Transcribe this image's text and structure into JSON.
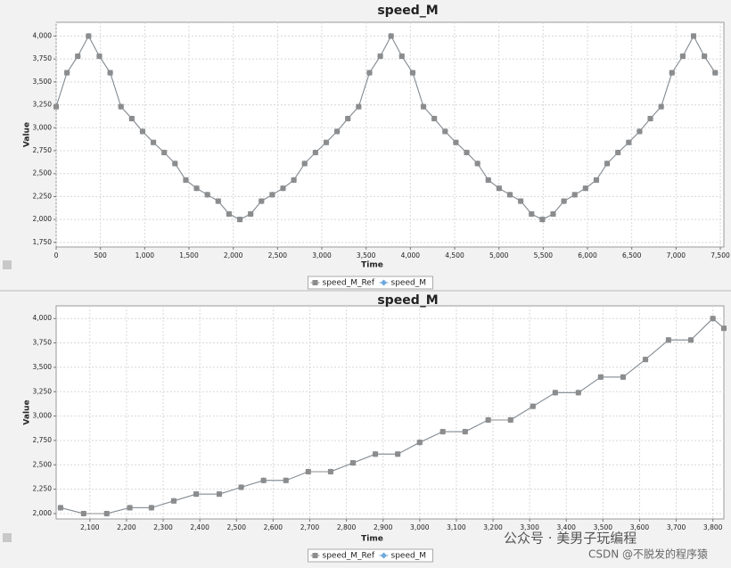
{
  "chart_data": [
    {
      "type": "line",
      "title": "speed_M",
      "x_label": "Time",
      "y_label": "Value",
      "grid": true,
      "legend": "bottom",
      "x": [
        0,
        122,
        244,
        366,
        488,
        610,
        732,
        854,
        976,
        1098,
        1220,
        1342,
        1464,
        1586,
        1708,
        1830,
        1952,
        2074,
        2196,
        2318,
        2440,
        2562,
        2684,
        2806,
        2928,
        3050,
        3172,
        3294,
        3416,
        3538,
        3660,
        3782,
        3904,
        4026,
        4148,
        4270,
        4392,
        4514,
        4636,
        4758,
        4880,
        5002,
        5124,
        5246,
        5368,
        5490,
        5612,
        5734,
        5856,
        5978,
        6100,
        6222,
        6344,
        6466,
        6588,
        6710,
        6832,
        6954,
        7076,
        7198,
        7320,
        7442
      ],
      "series": [
        {
          "name": "speed_M_Ref",
          "color": "#8c8c8c",
          "marker": "square",
          "values": [
            3230,
            3600,
            3780,
            4000,
            3780,
            3600,
            3230,
            3100,
            2960,
            2840,
            2730,
            2610,
            2430,
            2340,
            2270,
            2200,
            2060,
            2000,
            2060,
            2200,
            2270,
            2340,
            2430,
            2610,
            2730,
            2840,
            2960,
            3100,
            3230,
            3600,
            3780,
            4000,
            3780,
            3600,
            3230,
            3100,
            2960,
            2840,
            2730,
            2610,
            2430,
            2340,
            2270,
            2200,
            2060,
            2000,
            2060,
            2200,
            2270,
            2340,
            2430,
            2610,
            2730,
            2840,
            2960,
            3100,
            3230,
            3600,
            3780,
            4000,
            3780,
            3600
          ]
        },
        {
          "name": "speed_M",
          "color": "#6fa8dc",
          "marker": "diamond",
          "values": [
            3230,
            3600,
            3780,
            4000,
            3780,
            3600,
            3230,
            3100,
            2960,
            2840,
            2730,
            2610,
            2430,
            2340,
            2270,
            2200,
            2060,
            2000,
            2060,
            2200,
            2270,
            2340,
            2430,
            2610,
            2730,
            2840,
            2960,
            3100,
            3230,
            3600,
            3780,
            4000,
            3780,
            3600,
            3230,
            3100,
            2960,
            2840,
            2730,
            2610,
            2430,
            2340,
            2270,
            2200,
            2060,
            2000,
            2060,
            2200,
            2270,
            2340,
            2430,
            2610,
            2730,
            2840,
            2960,
            3100,
            3230,
            3600,
            3780,
            4000,
            3780,
            3600
          ]
        }
      ],
      "xlim": [
        0,
        7540
      ],
      "ylim": [
        1700,
        4150
      ],
      "xticks": [
        0,
        500,
        {
          "value": 1000,
          "label": "1,000"
        },
        {
          "value": 1500,
          "label": "1,500"
        },
        {
          "value": 2000,
          "label": "2,000"
        },
        {
          "value": 2500,
          "label": "2,500"
        },
        {
          "value": 3000,
          "label": "3,000"
        },
        {
          "value": 3500,
          "label": "3,500"
        },
        {
          "value": 4000,
          "label": "4,000"
        },
        {
          "value": 4500,
          "label": "4,500"
        },
        {
          "value": 5000,
          "label": "5,000"
        },
        {
          "value": 5500,
          "label": "5,500"
        },
        {
          "value": 6000,
          "label": "6,000"
        },
        {
          "value": 6500,
          "label": "6,500"
        },
        {
          "value": 7000,
          "label": "7,000"
        },
        {
          "value": 7500,
          "label": "7,500"
        }
      ],
      "yticks": [
        {
          "value": 1750,
          "label": "1,750"
        },
        {
          "value": 2000,
          "label": "2,000"
        },
        {
          "value": 2250,
          "label": "2,250"
        },
        {
          "value": 2500,
          "label": "2,500"
        },
        {
          "value": 2750,
          "label": "2,750"
        },
        {
          "value": 3000,
          "label": "3,000"
        },
        {
          "value": 3250,
          "label": "3,250"
        },
        {
          "value": 3500,
          "label": "3,500"
        },
        {
          "value": 3750,
          "label": "3,750"
        },
        {
          "value": 4000,
          "label": "4,000"
        }
      ]
    },
    {
      "type": "line",
      "title": "speed_M",
      "x_label": "Time",
      "y_label": "Value",
      "grid": true,
      "legend": "bottom",
      "x": [
        2020,
        2083,
        2146,
        2209,
        2268,
        2329,
        2390,
        2453,
        2513,
        2574,
        2635,
        2696,
        2757,
        2818,
        2879,
        2940,
        3000,
        3063,
        3124,
        3187,
        3248,
        3309,
        3370,
        3433,
        3494,
        3555,
        3616,
        3679,
        3740,
        3800,
        3830
      ],
      "series": [
        {
          "name": "speed_M_Ref",
          "color": "#8c8c8c",
          "marker": "square",
          "values": [
            2060,
            2000,
            2000,
            2060,
            2060,
            2130,
            2200,
            2200,
            2270,
            2340,
            2340,
            2430,
            2430,
            2520,
            2610,
            2610,
            2730,
            2840,
            2840,
            2960,
            2960,
            3100,
            3240,
            3240,
            3400,
            3400,
            3580,
            3780,
            3780,
            4000,
            3900
          ]
        },
        {
          "name": "speed_M",
          "color": "#6fa8dc",
          "marker": "diamond",
          "values": [
            2060,
            2000,
            2000,
            2060,
            2060,
            2130,
            2200,
            2200,
            2270,
            2340,
            2340,
            2430,
            2430,
            2520,
            2610,
            2610,
            2730,
            2840,
            2840,
            2960,
            2960,
            3100,
            3240,
            3240,
            3400,
            3400,
            3580,
            3780,
            3780,
            4000,
            3900
          ]
        }
      ],
      "xlim": [
        2008,
        3830
      ],
      "ylim": [
        1945,
        4130
      ],
      "xticks": [
        {
          "value": 2100,
          "label": "2,100"
        },
        {
          "value": 2200,
          "label": "2,200"
        },
        {
          "value": 2300,
          "label": "2,300"
        },
        {
          "value": 2400,
          "label": "2,400"
        },
        {
          "value": 2500,
          "label": "2,500"
        },
        {
          "value": 2600,
          "label": "2,600"
        },
        {
          "value": 2700,
          "label": "2,700"
        },
        {
          "value": 2800,
          "label": "2,800"
        },
        {
          "value": 2900,
          "label": "2,900"
        },
        {
          "value": 3000,
          "label": "3,000"
        },
        {
          "value": 3100,
          "label": "3,100"
        },
        {
          "value": 3200,
          "label": "3,200"
        },
        {
          "value": 3300,
          "label": "3,300"
        },
        {
          "value": 3400,
          "label": "3,400"
        },
        {
          "value": 3500,
          "label": "3,500"
        },
        {
          "value": 3600,
          "label": "3,600"
        },
        {
          "value": 3700,
          "label": "3,700"
        },
        {
          "value": 3800,
          "label": "3,800"
        }
      ],
      "yticks": [
        {
          "value": 2000,
          "label": "2,000"
        },
        {
          "value": 2250,
          "label": "2,250"
        },
        {
          "value": 2500,
          "label": "2,500"
        },
        {
          "value": 2750,
          "label": "2,750"
        },
        {
          "value": 3000,
          "label": "3,000"
        },
        {
          "value": 3250,
          "label": "3,250"
        },
        {
          "value": 3500,
          "label": "3,500"
        },
        {
          "value": 3750,
          "label": "3,750"
        },
        {
          "value": 4000,
          "label": "4,000"
        }
      ]
    }
  ],
  "watermark": {
    "account": "公众号 · 美男子玩编程",
    "source": "CSDN @不脱发的程序猿"
  }
}
